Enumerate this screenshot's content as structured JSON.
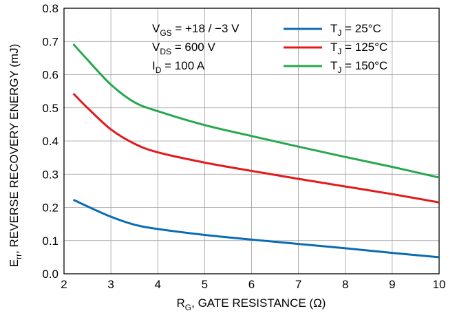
{
  "chart_data": {
    "type": "line",
    "xlabel": {
      "main": "R",
      "sub": "G",
      "rest": ", GATE RESISTANCE (Ω)"
    },
    "ylabel": {
      "main": "E",
      "sub": "rr",
      "rest": ", REVERSE RECOVERY ENERGY (mJ)"
    },
    "xlim": [
      2,
      10
    ],
    "ylim": [
      0,
      0.8
    ],
    "xticks": [
      "2",
      "3",
      "4",
      "5",
      "6",
      "7",
      "8",
      "9",
      "10"
    ],
    "yticks": [
      "0.0",
      "0.1",
      "0.2",
      "0.3",
      "0.4",
      "0.5",
      "0.6",
      "0.7",
      "0.8"
    ],
    "grid": true,
    "legend_position": "top-right",
    "conditions": [
      {
        "main": "V",
        "sub": "GS",
        "rest": " = +18 / −3 V"
      },
      {
        "main": "V",
        "sub": "DS",
        "rest": " = 600 V"
      },
      {
        "main": "I",
        "sub": "D",
        "rest": " = 100 A"
      }
    ],
    "series": [
      {
        "name": "T_J = 25°C",
        "label": {
          "main": "T",
          "sub": "J",
          "rest": " = 25°C"
        },
        "color": "#0a6bb5",
        "x": [
          2.2,
          2.5,
          3.0,
          3.5,
          4.0,
          5.0,
          6.0,
          7.0,
          8.0,
          9.0,
          10.0
        ],
        "y": [
          0.223,
          0.203,
          0.172,
          0.148,
          0.135,
          0.117,
          0.103,
          0.09,
          0.077,
          0.063,
          0.05
        ]
      },
      {
        "name": "T_J = 125°C",
        "label": {
          "main": "T",
          "sub": "J",
          "rest": " = 125°C"
        },
        "color": "#e3191b",
        "x": [
          2.2,
          2.5,
          3.0,
          3.5,
          4.0,
          5.0,
          6.0,
          7.0,
          8.0,
          9.0,
          10.0
        ],
        "y": [
          0.543,
          0.5,
          0.435,
          0.392,
          0.366,
          0.335,
          0.31,
          0.286,
          0.263,
          0.24,
          0.215
        ]
      },
      {
        "name": "T_J = 150°C",
        "label": {
          "main": "T",
          "sub": "J",
          "rest": " = 150°C"
        },
        "color": "#25a84a",
        "x": [
          2.2,
          2.5,
          3.0,
          3.5,
          4.0,
          5.0,
          6.0,
          7.0,
          8.0,
          9.0,
          10.0
        ],
        "y": [
          0.692,
          0.645,
          0.57,
          0.517,
          0.49,
          0.448,
          0.415,
          0.383,
          0.352,
          0.322,
          0.29
        ]
      }
    ]
  }
}
